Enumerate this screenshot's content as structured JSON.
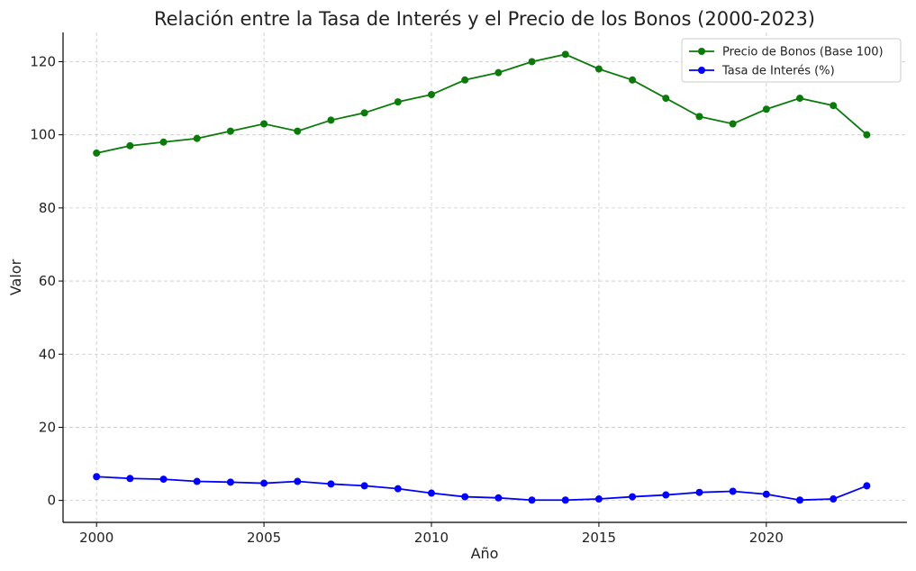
{
  "chart_data": {
    "type": "line",
    "title": "Relación entre la Tasa de Interés y el Precio de los Bonos (2000-2023)",
    "xlabel": "Año",
    "ylabel": "Valor",
    "xlim": [
      1999.0,
      2024.2
    ],
    "ylim": [
      -6,
      128
    ],
    "xticks": [
      2000,
      2005,
      2010,
      2015,
      2020
    ],
    "yticks": [
      0,
      20,
      40,
      60,
      80,
      100,
      120
    ],
    "grid": true,
    "legend_position": "top-right",
    "x": [
      2000,
      2001,
      2002,
      2003,
      2004,
      2005,
      2006,
      2007,
      2008,
      2009,
      2010,
      2011,
      2012,
      2013,
      2014,
      2015,
      2016,
      2017,
      2018,
      2019,
      2020,
      2021,
      2022,
      2023
    ],
    "series": [
      {
        "name": "Precio de Bonos (Base 100)",
        "color": "#0b7a0b",
        "values": [
          95,
          97,
          98,
          99,
          101,
          103,
          101,
          104,
          106,
          109,
          111,
          115,
          117,
          120,
          122,
          118,
          115,
          110,
          105,
          103,
          107,
          110,
          108,
          100
        ]
      },
      {
        "name": "Tasa de Interés (%)",
        "color": "#0000ff",
        "values": [
          6.5,
          6.0,
          5.8,
          5.2,
          5.0,
          4.7,
          5.2,
          4.5,
          4.0,
          3.2,
          2.0,
          1.0,
          0.7,
          0.1,
          0.1,
          0.4,
          1.0,
          1.5,
          2.2,
          2.5,
          1.7,
          0.1,
          0.4,
          4.0
        ]
      }
    ]
  }
}
